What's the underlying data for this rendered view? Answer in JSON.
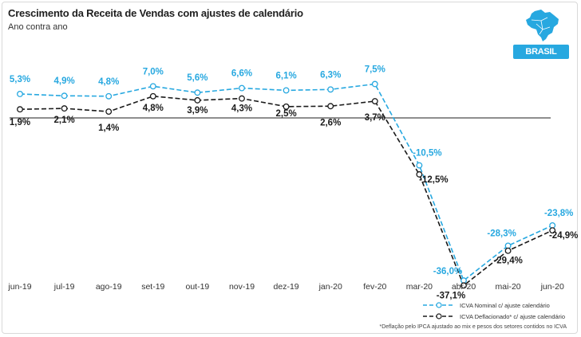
{
  "header": {
    "title": "Crescimento da Receita de Vendas com ajustes de calendário",
    "subtitle": "Ano contra ano",
    "region_badge": "BRASIL"
  },
  "colors": {
    "nominal": "#27a8e0",
    "deflated": "#1a1a1a",
    "zero_line": "#4a4a4a"
  },
  "icons": {
    "region": "brazil-map-icon"
  },
  "chart_data": {
    "type": "line",
    "categories": [
      "jun-19",
      "jul-19",
      "ago-19",
      "set-19",
      "out-19",
      "nov-19",
      "dez-19",
      "jan-20",
      "fev-20",
      "mar-20",
      "abr-20",
      "mai-20",
      "jun-20"
    ],
    "series": [
      {
        "name": "ICVA Nominal c/ ajuste calendário",
        "values": [
          5.3,
          4.9,
          4.8,
          7.0,
          5.6,
          6.6,
          6.1,
          6.3,
          7.5,
          -10.5,
          -36.0,
          -28.3,
          -23.8
        ],
        "labels": [
          "5,3%",
          "4,9%",
          "4,8%",
          "7,0%",
          "5,6%",
          "6,6%",
          "6,1%",
          "6,3%",
          "7,5%",
          "-10,5%",
          "-36,0%",
          "-28,3%",
          "-23,8%"
        ]
      },
      {
        "name": "ICVA Deflacionado* c/ ajuste calendário",
        "values": [
          1.9,
          2.1,
          1.4,
          4.8,
          3.9,
          4.3,
          2.5,
          2.6,
          3.7,
          -12.5,
          -37.1,
          -29.4,
          -24.9
        ],
        "labels": [
          "1,9%",
          "2,1%",
          "1,4%",
          "4,8%",
          "3,9%",
          "4,3%",
          "2,5%",
          "2,6%",
          "3,7%",
          "-12,5%",
          "-37,1%",
          "-29,4%",
          "-24,9%"
        ]
      }
    ],
    "ylim": [
      -38,
      12
    ],
    "grid": false,
    "legend_position": "bottom-right",
    "footnote": "*Deflação pelo IPCA ajustado ao mix e pesos dos setores contidos no ICVA"
  }
}
